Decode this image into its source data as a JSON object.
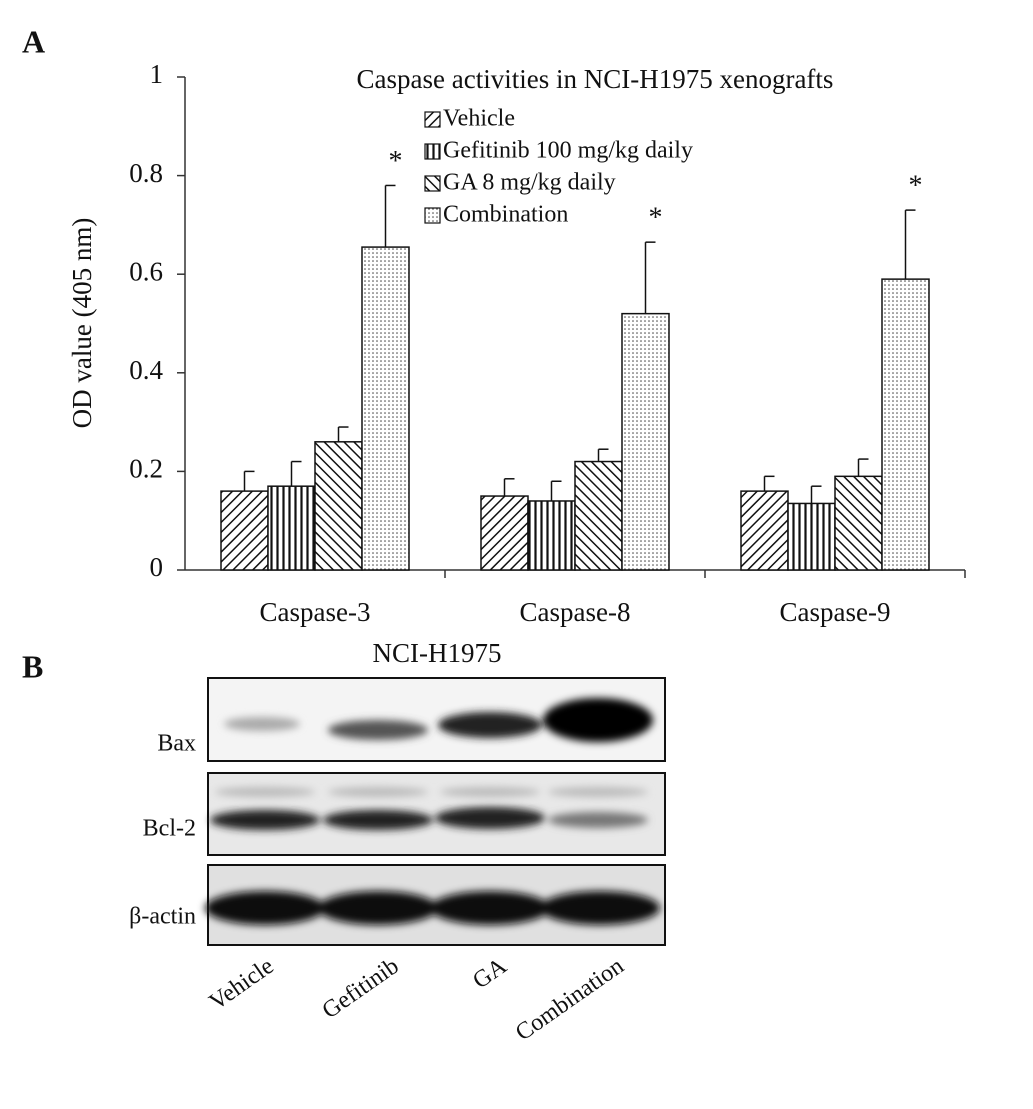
{
  "panel_labels": [
    "A",
    "B"
  ],
  "chart_data": {
    "type": "bar",
    "title": "Caspase activities in NCI-H1975 xenografts",
    "y_label": "OD value (405 nm)",
    "categories": [
      "Caspase-3",
      "Caspase-8",
      "Caspase-9"
    ],
    "series": [
      {
        "name": "Vehicle",
        "color": "#111111",
        "pattern": "diagonal-down",
        "values": [
          0.16,
          0.15,
          0.16
        ],
        "errors": [
          0.04,
          0.035,
          0.03
        ]
      },
      {
        "name": "Gefitinib 100 mg/kg daily",
        "color": "#111111",
        "pattern": "vertical",
        "values": [
          0.17,
          0.14,
          0.135
        ],
        "errors": [
          0.05,
          0.04,
          0.035
        ]
      },
      {
        "name": "GA 8 mg/kg daily",
        "color": "#111111",
        "pattern": "diagonal-up",
        "values": [
          0.26,
          0.22,
          0.19
        ],
        "errors": [
          0.03,
          0.025,
          0.035
        ]
      },
      {
        "name": "Combination",
        "color": "#111111",
        "pattern": "dots",
        "values": [
          0.655,
          0.52,
          0.59
        ],
        "errors": [
          0.125,
          0.145,
          0.14
        ]
      }
    ],
    "annotations": [
      "*",
      "*",
      "*"
    ],
    "ylim": [
      0,
      1
    ],
    "yticks": [
      0,
      0.2,
      0.4,
      0.6,
      0.8,
      1
    ],
    "legend": "top"
  },
  "blot": {
    "title": "NCI-H1975",
    "rows": [
      "Bax",
      "Bcl-2",
      "β-actin"
    ],
    "lanes": [
      "Vehicle",
      "Gefitinib",
      "GA",
      "Combination"
    ]
  }
}
